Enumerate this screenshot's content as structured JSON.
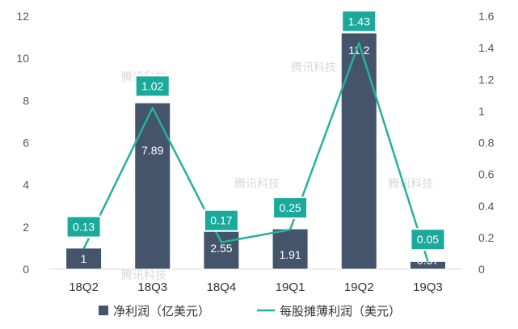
{
  "watermark": "腾讯科技",
  "colors": {
    "bar": "#44546a",
    "line": "#26b09f",
    "label_box": "#1aa99a",
    "label_box_border": "#ffffff"
  },
  "chart_data": {
    "type": "bar",
    "categories": [
      "18Q2",
      "18Q3",
      "18Q4",
      "19Q1",
      "19Q2",
      "19Q3"
    ],
    "series": [
      {
        "name": "净利润（亿美元）",
        "type": "bar",
        "axis": "left",
        "values": [
          1,
          7.89,
          2.55,
          1.91,
          11.2,
          0.37
        ],
        "labels": [
          "1",
          "7.89",
          "2.55",
          "1.91",
          "11.2",
          "0.37"
        ]
      },
      {
        "name": "每股摊薄利润（美元）",
        "type": "line",
        "axis": "right",
        "values": [
          0.13,
          1.02,
          0.17,
          0.25,
          1.43,
          0.05
        ],
        "labels": [
          "0.13",
          "1.02",
          "0.17",
          "0.25",
          "1.43",
          "0.05"
        ]
      }
    ],
    "y_left": {
      "min": 0,
      "max": 12,
      "ticks": [
        "0",
        "2",
        "4",
        "6",
        "8",
        "10",
        "12"
      ]
    },
    "y_right": {
      "min": 0,
      "max": 1.6,
      "ticks": [
        "0",
        "0.2",
        "0.4",
        "0.6",
        "0.8",
        "1",
        "1.2",
        "1.4",
        "1.6"
      ]
    },
    "grid": false,
    "legend_position": "bottom"
  }
}
